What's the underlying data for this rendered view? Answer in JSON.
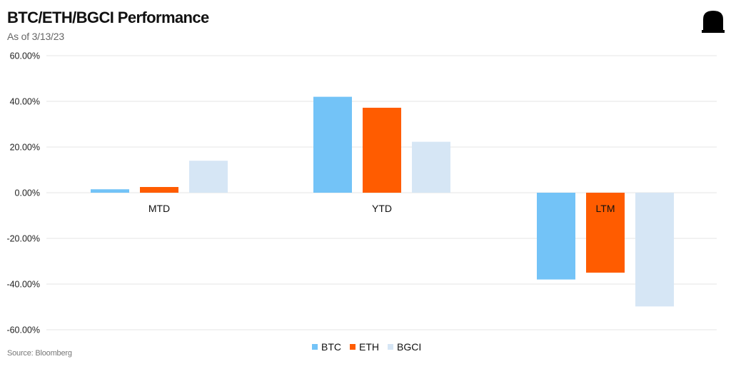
{
  "header": {
    "title": "BTC/ETH/BGCI Performance",
    "subtitle": "As of 3/13/23"
  },
  "footer": {
    "source": "Source: Bloomberg"
  },
  "logo": {
    "icon": "coinbase-logo-icon"
  },
  "colors": {
    "BTC": "#73C3F7",
    "ETH": "#FF5C00",
    "BGCI": "#D6E6F5",
    "grid": "#E6E6E6",
    "axis_text": "#222222"
  },
  "chart_data": {
    "type": "bar",
    "title": "BTC/ETH/BGCI Performance",
    "categories": [
      "MTD",
      "YTD",
      "LTM"
    ],
    "series": [
      {
        "name": "BTC",
        "values": [
          1.5,
          42.0,
          -38.0
        ]
      },
      {
        "name": "ETH",
        "values": [
          2.5,
          37.2,
          -35.0
        ]
      },
      {
        "name": "BGCI",
        "values": [
          14.0,
          22.3,
          -49.8
        ]
      }
    ],
    "ylim": [
      -60,
      60
    ],
    "yticks": [
      60,
      40,
      20,
      0,
      -20,
      -40,
      -60
    ],
    "ytick_labels": [
      "60.00%",
      "40.00%",
      "20.00%",
      "0.00%",
      "-20.00%",
      "-40.00%",
      "-60.00%"
    ],
    "xlabel": "",
    "ylabel": "",
    "grid": true,
    "legend": [
      "BTC",
      "ETH",
      "BGCI"
    ],
    "legend_position": "bottom-center"
  }
}
